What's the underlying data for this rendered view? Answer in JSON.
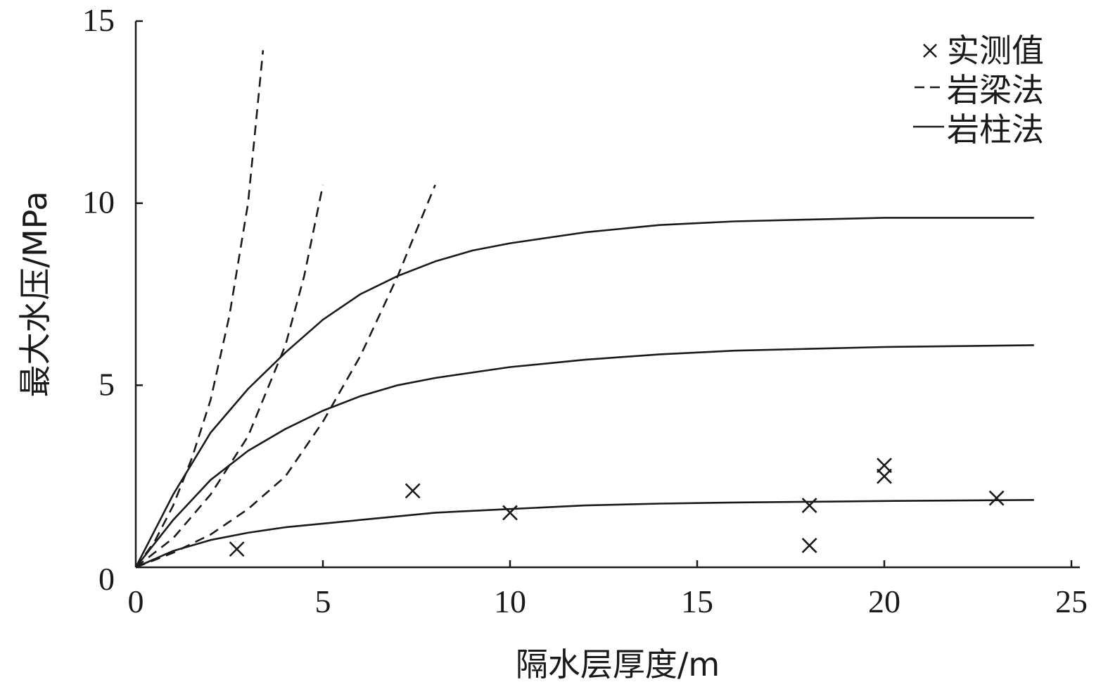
{
  "chart_data": {
    "type": "line",
    "xlabel": "隔水层厚度/m",
    "ylabel": "最大水压/MPa",
    "xlim": [
      0,
      25
    ],
    "ylim": [
      0,
      15
    ],
    "xticks": [
      {
        "value": 0,
        "label": "0"
      },
      {
        "value": 5,
        "label": "5"
      },
      {
        "value": 10,
        "label": "10"
      },
      {
        "value": 15,
        "label": "15"
      },
      {
        "value": 20,
        "label": "20"
      },
      {
        "value": 25,
        "label": "25"
      }
    ],
    "yticks": [
      {
        "value": 0,
        "label": "0"
      },
      {
        "value": 5,
        "label": "5"
      },
      {
        "value": 10,
        "label": "10"
      },
      {
        "value": 15,
        "label": "15"
      }
    ],
    "grid": false,
    "legend_position": "top-right",
    "legend": [
      {
        "label": "实测值",
        "symbol": "cross"
      },
      {
        "label": "岩梁法",
        "symbol": "dashed-line"
      },
      {
        "label": "岩柱法",
        "symbol": "solid-line"
      }
    ],
    "series": [
      {
        "name": "实测值",
        "kind": "scatter",
        "points": [
          {
            "x": 2.7,
            "y": 0.5
          },
          {
            "x": 7.4,
            "y": 2.1
          },
          {
            "x": 10.0,
            "y": 1.5
          },
          {
            "x": 18.0,
            "y": 1.7
          },
          {
            "x": 18.0,
            "y": 0.6
          },
          {
            "x": 20.0,
            "y": 2.8
          },
          {
            "x": 20.0,
            "y": 2.5
          },
          {
            "x": 23.0,
            "y": 1.9
          }
        ]
      },
      {
        "name": "岩梁法",
        "kind": "dashed-line",
        "points": [
          {
            "x": 0,
            "y": 0
          },
          {
            "x": 0.5,
            "y": 0.7
          },
          {
            "x": 1.0,
            "y": 1.7
          },
          {
            "x": 1.5,
            "y": 3.0
          },
          {
            "x": 2.0,
            "y": 4.6
          },
          {
            "x": 2.5,
            "y": 6.9
          },
          {
            "x": 3.0,
            "y": 10.0
          },
          {
            "x": 3.4,
            "y": 14.2
          }
        ]
      },
      {
        "name": "岩梁法",
        "kind": "dashed-line",
        "points": [
          {
            "x": 0,
            "y": 0
          },
          {
            "x": 1.0,
            "y": 0.8
          },
          {
            "x": 2.0,
            "y": 2.0
          },
          {
            "x": 3.0,
            "y": 3.6
          },
          {
            "x": 4.0,
            "y": 6.1
          },
          {
            "x": 4.5,
            "y": 8.0
          },
          {
            "x": 5.0,
            "y": 10.5
          }
        ]
      },
      {
        "name": "岩梁法",
        "kind": "dashed-line",
        "points": [
          {
            "x": 0,
            "y": 0
          },
          {
            "x": 1.0,
            "y": 0.4
          },
          {
            "x": 2.0,
            "y": 0.9
          },
          {
            "x": 3.0,
            "y": 1.6
          },
          {
            "x": 4.0,
            "y": 2.5
          },
          {
            "x": 5.0,
            "y": 4.0
          },
          {
            "x": 6.0,
            "y": 5.8
          },
          {
            "x": 7.0,
            "y": 8.0
          },
          {
            "x": 8.0,
            "y": 10.5
          }
        ]
      },
      {
        "name": "岩柱法",
        "kind": "solid-line",
        "points": [
          {
            "x": 0,
            "y": 0
          },
          {
            "x": 1,
            "y": 2.0
          },
          {
            "x": 2,
            "y": 3.7
          },
          {
            "x": 3,
            "y": 4.9
          },
          {
            "x": 4,
            "y": 5.9
          },
          {
            "x": 5,
            "y": 6.8
          },
          {
            "x": 6,
            "y": 7.5
          },
          {
            "x": 7,
            "y": 8.0
          },
          {
            "x": 8,
            "y": 8.4
          },
          {
            "x": 9,
            "y": 8.7
          },
          {
            "x": 10,
            "y": 8.9
          },
          {
            "x": 12,
            "y": 9.2
          },
          {
            "x": 14,
            "y": 9.4
          },
          {
            "x": 16,
            "y": 9.5
          },
          {
            "x": 18,
            "y": 9.55
          },
          {
            "x": 20,
            "y": 9.6
          },
          {
            "x": 22,
            "y": 9.6
          },
          {
            "x": 24,
            "y": 9.6
          }
        ]
      },
      {
        "name": "岩柱法",
        "kind": "solid-line",
        "points": [
          {
            "x": 0,
            "y": 0
          },
          {
            "x": 1,
            "y": 1.3
          },
          {
            "x": 2,
            "y": 2.4
          },
          {
            "x": 3,
            "y": 3.2
          },
          {
            "x": 4,
            "y": 3.8
          },
          {
            "x": 5,
            "y": 4.3
          },
          {
            "x": 6,
            "y": 4.7
          },
          {
            "x": 7,
            "y": 5.0
          },
          {
            "x": 8,
            "y": 5.2
          },
          {
            "x": 10,
            "y": 5.5
          },
          {
            "x": 12,
            "y": 5.7
          },
          {
            "x": 14,
            "y": 5.85
          },
          {
            "x": 16,
            "y": 5.95
          },
          {
            "x": 18,
            "y": 6.0
          },
          {
            "x": 20,
            "y": 6.05
          },
          {
            "x": 24,
            "y": 6.1
          }
        ]
      },
      {
        "name": "岩柱法",
        "kind": "solid-line",
        "points": [
          {
            "x": 0,
            "y": 0
          },
          {
            "x": 1,
            "y": 0.45
          },
          {
            "x": 2,
            "y": 0.75
          },
          {
            "x": 3,
            "y": 0.95
          },
          {
            "x": 4,
            "y": 1.1
          },
          {
            "x": 5,
            "y": 1.2
          },
          {
            "x": 6,
            "y": 1.3
          },
          {
            "x": 7,
            "y": 1.4
          },
          {
            "x": 8,
            "y": 1.5
          },
          {
            "x": 10,
            "y": 1.6
          },
          {
            "x": 12,
            "y": 1.7
          },
          {
            "x": 14,
            "y": 1.75
          },
          {
            "x": 16,
            "y": 1.78
          },
          {
            "x": 18,
            "y": 1.8
          },
          {
            "x": 20,
            "y": 1.82
          },
          {
            "x": 24,
            "y": 1.85
          }
        ]
      }
    ]
  }
}
